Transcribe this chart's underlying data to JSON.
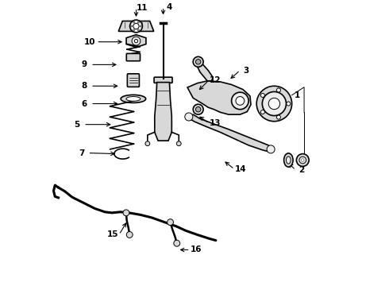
{
  "bg_color": "#ffffff",
  "line_color": "#000000",
  "gray_fill": "#d8d8d8",
  "gray_dark": "#aaaaaa",
  "gray_light": "#eeeeee",
  "lw_main": 1.2,
  "lw_thin": 0.7,
  "lw_thick": 2.0,
  "fs_label": 7.5,
  "parts_left_col": [
    {
      "label": "11",
      "arrow_from": [
        0.295,
        0.935
      ],
      "arrow_to": [
        0.295,
        0.975
      ]
    },
    {
      "label": "10",
      "arrow_from": [
        0.255,
        0.855
      ],
      "arrow_to": [
        0.155,
        0.855
      ]
    },
    {
      "label": "9",
      "arrow_from": [
        0.235,
        0.775
      ],
      "arrow_to": [
        0.135,
        0.775
      ]
    },
    {
      "label": "8",
      "arrow_from": [
        0.24,
        0.7
      ],
      "arrow_to": [
        0.135,
        0.7
      ]
    },
    {
      "label": "6",
      "arrow_from": [
        0.24,
        0.638
      ],
      "arrow_to": [
        0.135,
        0.638
      ]
    },
    {
      "label": "5",
      "arrow_from": [
        0.215,
        0.565
      ],
      "arrow_to": [
        0.11,
        0.565
      ]
    },
    {
      "label": "7",
      "arrow_from": [
        0.23,
        0.462
      ],
      "arrow_to": [
        0.125,
        0.465
      ]
    }
  ],
  "parts_right": [
    {
      "label": "4",
      "arrow_from": [
        0.39,
        0.942
      ],
      "arrow_to": [
        0.39,
        0.978
      ]
    },
    {
      "label": "12",
      "arrow_from": [
        0.51,
        0.68
      ],
      "arrow_to": [
        0.55,
        0.72
      ]
    },
    {
      "label": "13",
      "arrow_from": [
        0.51,
        0.598
      ],
      "arrow_to": [
        0.55,
        0.57
      ]
    },
    {
      "label": "3",
      "arrow_from": [
        0.62,
        0.72
      ],
      "arrow_to": [
        0.66,
        0.755
      ]
    },
    {
      "label": "1",
      "arrow_from": [
        0.79,
        0.638
      ],
      "arrow_to": [
        0.84,
        0.668
      ]
    },
    {
      "label": "2",
      "arrow_from": [
        0.825,
        0.435
      ],
      "arrow_to": [
        0.855,
        0.405
      ]
    },
    {
      "label": "14",
      "arrow_from": [
        0.6,
        0.44
      ],
      "arrow_to": [
        0.64,
        0.408
      ]
    },
    {
      "label": "15",
      "arrow_from": [
        0.265,
        0.228
      ],
      "arrow_to": [
        0.235,
        0.178
      ]
    },
    {
      "label": "16",
      "arrow_from": [
        0.44,
        0.125
      ],
      "arrow_to": [
        0.485,
        0.125
      ]
    }
  ]
}
